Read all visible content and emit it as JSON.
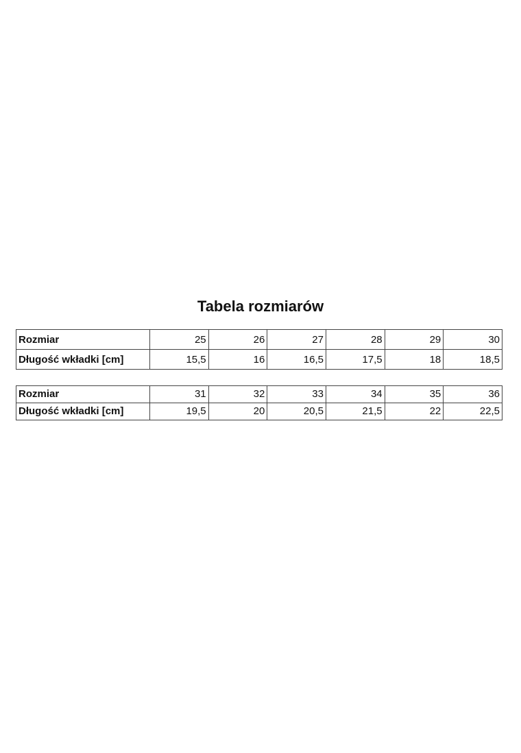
{
  "title": "Tabela rozmiarów",
  "tables": [
    {
      "rows": [
        {
          "label": "Rozmiar",
          "values": [
            "25",
            "26",
            "27",
            "28",
            "29",
            "30"
          ]
        },
        {
          "label": "Długość wkładki [cm]",
          "values": [
            "15,5",
            "16",
            "16,5",
            "17,5",
            "18",
            "18,5"
          ]
        }
      ]
    },
    {
      "rows": [
        {
          "label": "Rozmiar",
          "values": [
            "31",
            "32",
            "33",
            "34",
            "35",
            "36"
          ]
        },
        {
          "label": "Długość wkładki [cm]",
          "values": [
            "19,5",
            "20",
            "20,5",
            "21,5",
            "22",
            "22,5"
          ]
        }
      ]
    }
  ]
}
